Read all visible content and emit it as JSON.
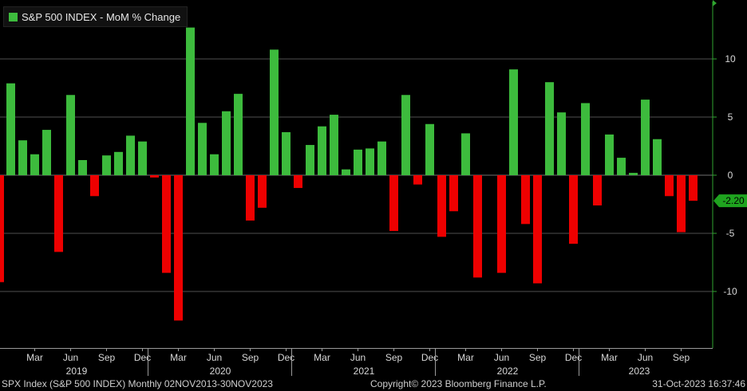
{
  "chart_data": {
    "type": "bar",
    "legend": "S&P 500 INDEX - MoM % Change",
    "legend_position": "top-left",
    "colors": {
      "positive": "#3dbb3d",
      "negative": "#ee0000",
      "last_value": "#1fa41f"
    },
    "grid": true,
    "ylim": [
      -14.8,
      14.8
    ],
    "yticks": [
      -10,
      -5,
      0,
      5,
      10
    ],
    "last_value_label": "-2.20",
    "month_labels": [
      "Mar",
      "Jun",
      "Sep",
      "Dec",
      "Mar",
      "Jun",
      "Sep",
      "Dec",
      "Mar",
      "Jun",
      "Sep",
      "Dec",
      "Mar",
      "Jun",
      "Sep",
      "Dec",
      "Mar",
      "Jun",
      "Sep"
    ],
    "year_labels": [
      "2019",
      "2020",
      "2021",
      "2022",
      "2023"
    ],
    "categories": [
      "Jan 2019",
      "Feb 2019",
      "Mar 2019",
      "Apr 2019",
      "May 2019",
      "Jun 2019",
      "Jul 2019",
      "Aug 2019",
      "Sep 2019",
      "Oct 2019",
      "Nov 2019",
      "Dec 2019",
      "Jan 2020",
      "Feb 2020",
      "Mar 2020",
      "Apr 2020",
      "May 2020",
      "Jun 2020",
      "Jul 2020",
      "Aug 2020",
      "Sep 2020",
      "Oct 2020",
      "Nov 2020",
      "Dec 2020",
      "Jan 2021",
      "Feb 2021",
      "Mar 2021",
      "Apr 2021",
      "May 2021",
      "Jun 2021",
      "Jul 2021",
      "Aug 2021",
      "Sep 2021",
      "Oct 2021",
      "Nov 2021",
      "Dec 2021",
      "Jan 2022",
      "Feb 2022",
      "Mar 2022",
      "Apr 2022",
      "May 2022",
      "Jun 2022",
      "Jul 2022",
      "Aug 2022",
      "Sep 2022",
      "Oct 2022",
      "Nov 2022",
      "Dec 2022",
      "Jan 2023",
      "Feb 2023",
      "Mar 2023",
      "Apr 2023",
      "May 2023",
      "Jun 2023",
      "Jul 2023",
      "Aug 2023",
      "Sep 2023",
      "Oct 2023"
    ],
    "leading_value": -9.2,
    "values": [
      7.9,
      3.0,
      1.8,
      3.9,
      -6.6,
      6.9,
      1.3,
      -1.8,
      1.7,
      2.0,
      3.4,
      2.9,
      -0.2,
      -8.4,
      -12.5,
      12.7,
      4.5,
      1.8,
      5.5,
      7.0,
      -3.9,
      -2.8,
      10.8,
      3.7,
      -1.1,
      2.6,
      4.2,
      5.2,
      0.5,
      2.2,
      2.3,
      2.9,
      -4.8,
      6.9,
      -0.8,
      4.4,
      -5.3,
      -3.1,
      3.6,
      -8.8,
      0.0,
      -8.4,
      9.1,
      -4.2,
      -9.3,
      8.0,
      5.4,
      -5.9,
      6.2,
      -2.6,
      3.5,
      1.5,
      0.2,
      6.5,
      3.1,
      -1.8,
      -4.9,
      -2.2
    ]
  },
  "footer": {
    "left": "SPX Index (S&P 500 INDEX)  Monthly 02NOV2013-30NOV2023",
    "center": "Copyright© 2023 Bloomberg Finance L.P.",
    "right": "31-Oct-2023 16:37:46"
  }
}
